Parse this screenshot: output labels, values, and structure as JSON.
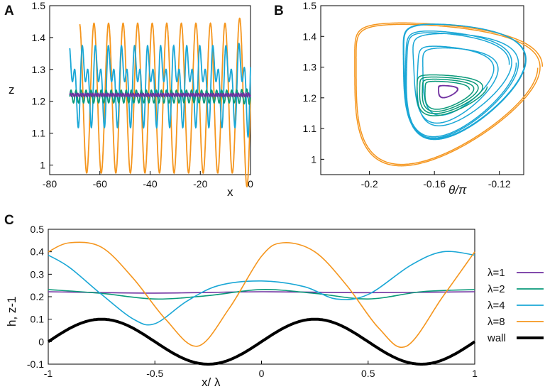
{
  "colors": {
    "lambda1": "#7030a0",
    "lambda2": "#0a9a7a",
    "lambda4": "#1aa7d6",
    "lambda8": "#f5961e",
    "wall": "#000000"
  },
  "chart_data": [
    {
      "panel": "A",
      "type": "line",
      "xlabel": "x",
      "ylabel": "z",
      "xlim": [
        -80,
        0
      ],
      "ylim": [
        0.97,
        1.5
      ],
      "xticks": [
        "-80",
        "-60",
        "-40",
        "-20",
        "0"
      ],
      "yticks": [
        "1",
        "1.1",
        "1.2",
        "1.3",
        "1.4",
        "1.5"
      ],
      "series": [
        {
          "name": "λ=1",
          "color_key": "lambda1",
          "x_start": -72,
          "x_end": 0,
          "mean": 1.22,
          "amplitude": 0.005,
          "wavelength": 1
        },
        {
          "name": "λ=2",
          "color_key": "lambda2",
          "x_start": -72,
          "x_end": 0,
          "mean": 1.215,
          "amplitude": 0.02,
          "wavelength": 2
        },
        {
          "name": "λ=4",
          "color_key": "lambda4",
          "x_start": -72,
          "x_end": 0,
          "mean": 1.26,
          "amplitude": 0.15,
          "wavelength": 5.2
        },
        {
          "name": "λ=8",
          "color_key": "lambda8",
          "x_start": -68,
          "x_end": 0,
          "mean": 1.21,
          "amplitude": 0.235,
          "wavelength": 5.8
        }
      ]
    },
    {
      "panel": "B",
      "type": "line",
      "xlabel": "θ/π",
      "ylabel": "",
      "xlim": [
        -0.23,
        -0.105
      ],
      "ylim": [
        0.95,
        1.5
      ],
      "xticks": [
        "-0.2",
        "-0.16",
        "-0.12"
      ],
      "yticks": [
        "1",
        "1.1",
        "1.2",
        "1.3",
        "1.4",
        "1.5"
      ],
      "series": [
        {
          "name": "λ=1",
          "color_key": "lambda1",
          "center_theta": -0.153,
          "center_z": 1.22,
          "radius_theta": 0.006,
          "radius_z": 0.02
        },
        {
          "name": "λ=2",
          "color_key": "lambda2",
          "center_theta": -0.155,
          "center_z": 1.21,
          "radius_theta": 0.022,
          "radius_z": 0.07
        },
        {
          "name": "λ=4",
          "color_key": "lambda4",
          "center_theta": -0.151,
          "center_z": 1.25,
          "radius_theta": 0.038,
          "radius_z": 0.19
        },
        {
          "name": "λ=8",
          "color_key": "lambda8",
          "center_theta": -0.166,
          "center_z": 1.21,
          "radius_theta": 0.058,
          "radius_z": 0.235
        }
      ]
    },
    {
      "panel": "C",
      "type": "line",
      "xlabel": "x/ λ",
      "ylabel": "h, z-1",
      "xlim": [
        -1,
        1
      ],
      "ylim": [
        -0.1,
        0.5
      ],
      "xticks": [
        "-1",
        "-0.5",
        "0",
        "0.5",
        "1"
      ],
      "yticks": [
        "-0.1",
        "0",
        "0.1",
        "0.2",
        "0.3",
        "0.4",
        "0.5"
      ],
      "series": [
        {
          "name": "λ=1",
          "color_key": "lambda1",
          "x": [
            -1,
            -0.5,
            0,
            0.5,
            1
          ],
          "y": [
            0.222,
            0.216,
            0.222,
            0.218,
            0.222
          ]
        },
        {
          "name": "λ=2",
          "color_key": "lambda2",
          "x": [
            -1,
            -0.75,
            -0.5,
            -0.25,
            0,
            0.25,
            0.5,
            0.75,
            1
          ],
          "y": [
            0.232,
            0.215,
            0.19,
            0.205,
            0.232,
            0.215,
            0.19,
            0.222,
            0.232
          ]
        },
        {
          "name": "λ=4",
          "color_key": "lambda4",
          "x": [
            -1,
            -0.9,
            -0.75,
            -0.6,
            -0.5,
            -0.35,
            -0.2,
            0,
            0.2,
            0.35,
            0.5,
            0.7,
            0.85,
            1
          ],
          "y": [
            0.385,
            0.33,
            0.21,
            0.1,
            0.08,
            0.18,
            0.25,
            0.27,
            0.245,
            0.19,
            0.21,
            0.34,
            0.4,
            0.385
          ]
        },
        {
          "name": "λ=8",
          "color_key": "lambda8",
          "x": [
            -1,
            -0.9,
            -0.75,
            -0.6,
            -0.45,
            -0.3,
            -0.15,
            0,
            0.1,
            0.25,
            0.4,
            0.55,
            0.68,
            0.85,
            1
          ],
          "y": [
            0.4,
            0.44,
            0.42,
            0.28,
            0.1,
            -0.02,
            0.15,
            0.38,
            0.44,
            0.4,
            0.25,
            0.06,
            -0.02,
            0.2,
            0.4
          ]
        },
        {
          "name": "wall",
          "color_key": "wall",
          "formula": "0.1*sin(2*pi*(x-0.0))",
          "x": [
            -1,
            -0.75,
            -0.5,
            -0.25,
            0,
            0.25,
            0.5,
            0.75,
            1
          ],
          "y": [
            0,
            0.1,
            0,
            -0.1,
            0,
            0.1,
            0,
            -0.1,
            0
          ]
        }
      ],
      "legend": [
        "λ=1",
        "λ=2",
        "λ=4",
        "λ=8",
        "wall"
      ]
    }
  ],
  "labels": {
    "panelA": "A",
    "panelB": "B",
    "panelC": "C"
  }
}
